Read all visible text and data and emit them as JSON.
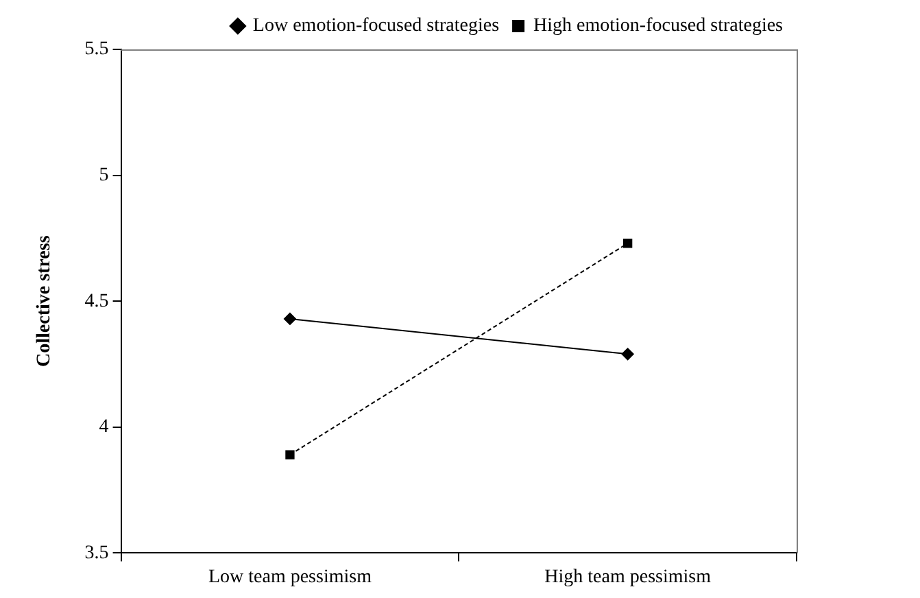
{
  "chart_data": {
    "type": "line",
    "ylabel": "Collective stress",
    "categories": [
      "Low team pessimism",
      "High team pessimism"
    ],
    "series": [
      {
        "name": "Low emotion-focused strategies",
        "color": "#000000",
        "values": [
          4.43,
          4.29
        ],
        "marker": "diamond",
        "line_style": "solid"
      },
      {
        "name": "High emotion-focused strategies",
        "color": "#000000",
        "values": [
          3.89,
          4.73
        ],
        "marker": "square",
        "line_style": "dashed"
      }
    ],
    "ylim": [
      3.5,
      5.5
    ],
    "yticks": [
      3.5,
      4,
      4.5,
      5,
      5.5
    ],
    "grid": false,
    "legend": "top"
  }
}
